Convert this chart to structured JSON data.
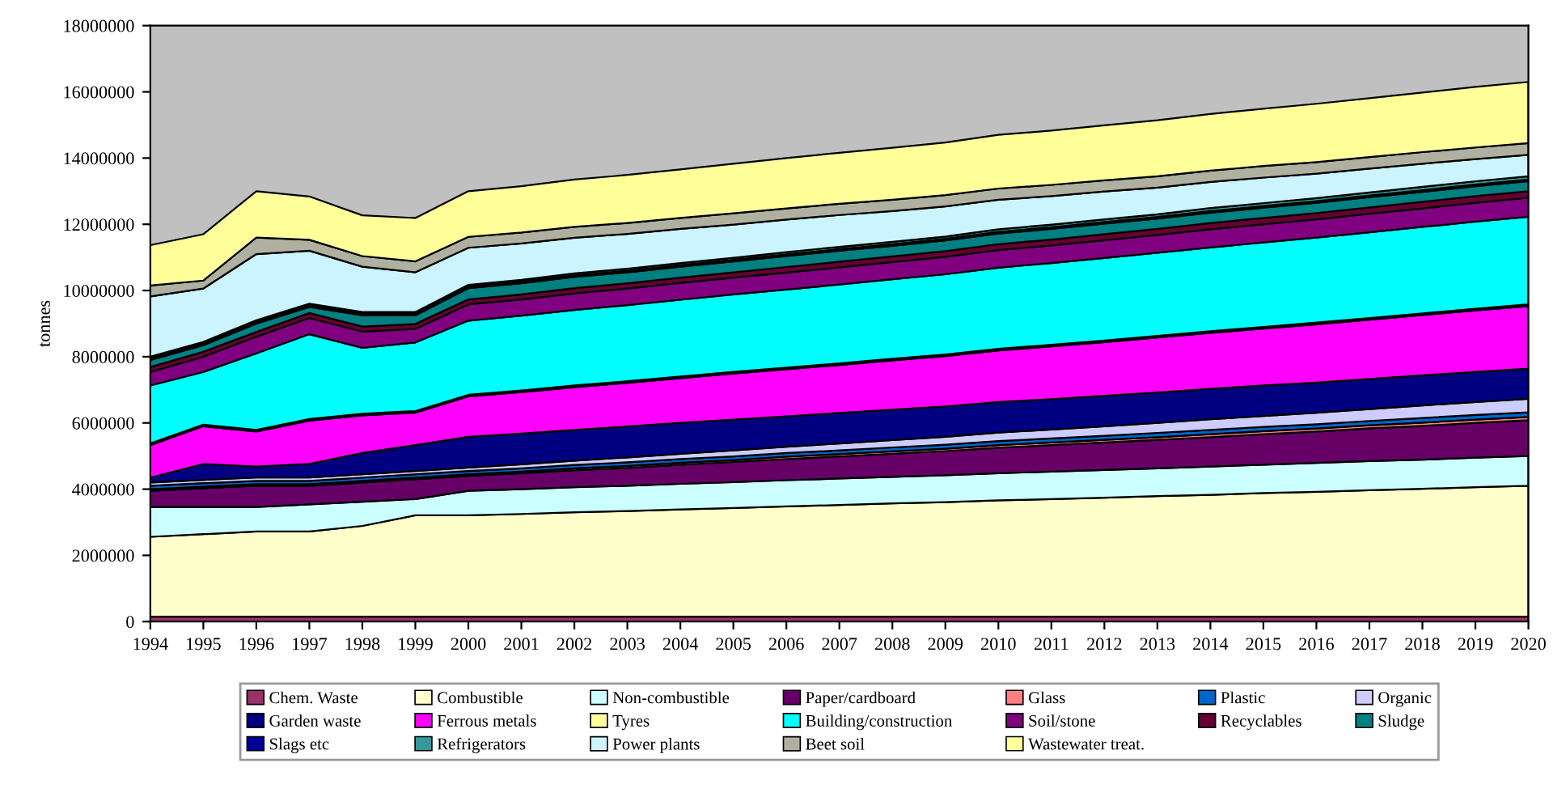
{
  "chart_data": {
    "type": "area",
    "stacked": true,
    "ylabel": "tonnes",
    "categories": [
      "1994",
      "1995",
      "1996",
      "1997",
      "1998",
      "1999",
      "2000",
      "2001",
      "2002",
      "2003",
      "2004",
      "2005",
      "2006",
      "2007",
      "2008",
      "2009",
      "2010",
      "2011",
      "2012",
      "2013",
      "2014",
      "2015",
      "2016",
      "2017",
      "2018",
      "2019",
      "2020"
    ],
    "ylim": [
      0,
      18000000
    ],
    "yticks": [
      0,
      2000000,
      4000000,
      6000000,
      8000000,
      10000000,
      12000000,
      14000000,
      16000000,
      18000000
    ],
    "grid": false,
    "legend": "bottom",
    "series": [
      {
        "name": "Chem. Waste",
        "color": "#993366",
        "values": [
          150000.0,
          150000.0,
          150000.0,
          150000.0,
          150000.0,
          150000.0,
          150000.0,
          150000.0,
          150000.0,
          150000.0,
          150000.0,
          150000.0,
          150000.0,
          150000.0,
          150000.0,
          150000.0,
          150000.0,
          150000.0,
          150000.0,
          150000.0,
          150000.0,
          150000.0,
          150000.0,
          150000.0,
          150000.0,
          150000.0,
          150000.0
        ]
      },
      {
        "name": "Combustible",
        "color": "#ffffcc",
        "values": [
          2410000.0,
          2490000.0,
          2570000.0,
          2570000.0,
          2740000.0,
          3060000.0,
          3060000.0,
          3100000.0,
          3150000.0,
          3190000.0,
          3240000.0,
          3280000.0,
          3330000.0,
          3370000.0,
          3420000.0,
          3460000.0,
          3510000.0,
          3550000.0,
          3590000.0,
          3640000.0,
          3680000.0,
          3730000.0,
          3770000.0,
          3820000.0,
          3860000.0,
          3910000.0,
          3950000.0
        ]
      },
      {
        "name": "Non-combustible",
        "color": "#ccffff",
        "values": [
          900000.0,
          820000.0,
          740000.0,
          820000.0,
          730000.0,
          490000.0,
          740000.0,
          750000.0,
          760000.0,
          760000.0,
          770000.0,
          780000.0,
          790000.0,
          800000.0,
          800000.0,
          810000.0,
          820000.0,
          830000.0,
          840000.0,
          840000.0,
          850000.0,
          860000.0,
          870000.0,
          880000.0,
          880000.0,
          890000.0,
          900000.0
        ]
      },
      {
        "name": "Paper/cardboard",
        "color": "#660066",
        "values": [
          490000.0,
          570000.0,
          640000.0,
          560000.0,
          580000.0,
          600000.0,
          450000.0,
          480000.0,
          510000.0,
          540000.0,
          580000.0,
          610000.0,
          640000.0,
          670000.0,
          700000.0,
          730000.0,
          770000.0,
          800000.0,
          830000.0,
          860000.0,
          890000.0,
          920000.0,
          950000.0,
          990000.0,
          1020000.0,
          1050000.0,
          1080000.0
        ]
      },
      {
        "name": "Glass",
        "color": "#ff8080",
        "values": [
          50000.0,
          50000.0,
          50000.0,
          50000.0,
          50000.0,
          50000.0,
          50000.0,
          50000.0,
          60000.0,
          60000.0,
          60000.0,
          60000.0,
          70000.0,
          70000.0,
          70000.0,
          70000.0,
          80000.0,
          80000.0,
          80000.0,
          80000.0,
          90000.0,
          90000.0,
          90000.0,
          90000.0,
          100000.0,
          100000.0,
          100000.0
        ]
      },
      {
        "name": "Plastic",
        "color": "#0066cc",
        "values": [
          100000.0,
          100000.0,
          100000.0,
          100000.0,
          100000.0,
          100000.0,
          100000.0,
          100000.0,
          100000.0,
          110000.0,
          110000.0,
          110000.0,
          110000.0,
          110000.0,
          120000.0,
          120000.0,
          120000.0,
          120000.0,
          120000.0,
          130000.0,
          130000.0,
          130000.0,
          130000.0,
          130000.0,
          140000.0,
          140000.0,
          140000.0
        ]
      },
      {
        "name": "Organic",
        "color": "#ccccff",
        "values": [
          100000.0,
          100000.0,
          100000.0,
          100000.0,
          100000.0,
          100000.0,
          100000.0,
          120000.0,
          130000.0,
          150000.0,
          160000.0,
          180000.0,
          190000.0,
          210000.0,
          220000.0,
          240000.0,
          260000.0,
          270000.0,
          290000.0,
          300000.0,
          320000.0,
          330000.0,
          350000.0,
          360000.0,
          380000.0,
          390000.0,
          410000.0
        ]
      },
      {
        "name": "Garden waste",
        "color": "#000080",
        "values": [
          150000.0,
          480000.0,
          330000.0,
          410000.0,
          640000.0,
          780000.0,
          930000.0,
          930000.0,
          930000.0,
          930000.0,
          930000.0,
          930000.0,
          920000.0,
          920000.0,
          920000.0,
          920000.0,
          920000.0,
          920000.0,
          920000.0,
          920000.0,
          920000.0,
          920000.0,
          910000.0,
          910000.0,
          910000.0,
          910000.0,
          910000.0
        ]
      },
      {
        "name": "Ferrous metals",
        "color": "#ff00ff",
        "values": [
          980000.0,
          1140000.0,
          1060000.0,
          1310000.0,
          1140000.0,
          980000.0,
          1220000.0,
          1250000.0,
          1290000.0,
          1320000.0,
          1350000.0,
          1390000.0,
          1420000.0,
          1450000.0,
          1490000.0,
          1520000.0,
          1560000.0,
          1590000.0,
          1620000.0,
          1660000.0,
          1690000.0,
          1720000.0,
          1760000.0,
          1790000.0,
          1820000.0,
          1860000.0,
          1890000.0
        ]
      },
      {
        "name": "Tyres",
        "color": "#ffff99",
        "values": [
          50000.0,
          50000.0,
          50000.0,
          50000.0,
          50000.0,
          50000.0,
          50000.0,
          50000.0,
          50000.0,
          50000.0,
          50000.0,
          50000.0,
          50000.0,
          50000.0,
          50000.0,
          50000.0,
          50000.0,
          50000.0,
          50000.0,
          50000.0,
          50000.0,
          50000.0,
          50000.0,
          50000.0,
          50000.0,
          50000.0,
          50000.0
        ]
      },
      {
        "name": "Building/construction",
        "color": "#00ffff",
        "values": [
          1750000.0,
          1590000.0,
          2310000.0,
          2560000.0,
          1990000.0,
          2070000.0,
          2240000.0,
          2260000.0,
          2280000.0,
          2300000.0,
          2320000.0,
          2340000.0,
          2360000.0,
          2380000.0,
          2400000.0,
          2420000.0,
          2450000.0,
          2470000.0,
          2490000.0,
          2510000.0,
          2530000.0,
          2550000.0,
          2570000.0,
          2590000.0,
          2610000.0,
          2630000.0,
          2650000.0
        ]
      },
      {
        "name": "Soil/stone",
        "color": "#800080",
        "values": [
          410000.0,
          460000.0,
          500000.0,
          490000.0,
          490000.0,
          410000.0,
          490000.0,
          490000.0,
          500000.0,
          500000.0,
          510000.0,
          510000.0,
          510000.0,
          520000.0,
          520000.0,
          530000.0,
          530000.0,
          530000.0,
          540000.0,
          540000.0,
          550000.0,
          550000.0,
          550000.0,
          560000.0,
          560000.0,
          570000.0,
          570000.0
        ]
      },
      {
        "name": "Recyclables",
        "color": "#660033",
        "values": [
          150000.0,
          150000.0,
          150000.0,
          150000.0,
          150000.0,
          150000.0,
          150000.0,
          150000.0,
          160000.0,
          160000.0,
          160000.0,
          160000.0,
          170000.0,
          170000.0,
          170000.0,
          170000.0,
          180000.0,
          180000.0,
          180000.0,
          180000.0,
          190000.0,
          190000.0,
          190000.0,
          190000.0,
          200000.0,
          200000.0,
          200000.0
        ]
      },
      {
        "name": "Sludge",
        "color": "#008080",
        "values": [
          210000.0,
          200000.0,
          250000.0,
          180000.0,
          340000.0,
          260000.0,
          340000.0,
          340000.0,
          340000.0,
          330000.0,
          330000.0,
          330000.0,
          330000.0,
          330000.0,
          320000.0,
          320000.0,
          320000.0,
          320000.0,
          320000.0,
          310000.0,
          310000.0,
          310000.0,
          310000.0,
          310000.0,
          300000.0,
          300000.0,
          300000.0
        ]
      },
      {
        "name": "Slags etc",
        "color": "#000099",
        "values": [
          50000.0,
          50000.0,
          50000.0,
          50000.0,
          50000.0,
          50000.0,
          50000.0,
          50000.0,
          50000.0,
          50000.0,
          50000.0,
          50000.0,
          50000.0,
          50000.0,
          50000.0,
          50000.0,
          50000.0,
          50000.0,
          50000.0,
          50000.0,
          50000.0,
          50000.0,
          50000.0,
          50000.0,
          50000.0,
          50000.0,
          50000.0
        ]
      },
      {
        "name": "Refrigerators",
        "color": "#339999",
        "values": [
          50000.0,
          50000.0,
          50000.0,
          50000.0,
          50000.0,
          50000.0,
          50000.0,
          50000.0,
          60000.0,
          60000.0,
          60000.0,
          60000.0,
          70000.0,
          70000.0,
          70000.0,
          70000.0,
          80000.0,
          80000.0,
          80000.0,
          80000.0,
          90000.0,
          90000.0,
          90000.0,
          90000.0,
          100000.0,
          100000.0,
          100000.0
        ]
      },
      {
        "name": "Power plants",
        "color": "#ccf4ff",
        "values": [
          1820000.0,
          1610000.0,
          2000000.0,
          1600000.0,
          1370000.0,
          1200000.0,
          1120000.0,
          1100000.0,
          1070000.0,
          1050000.0,
          1030000.0,
          1000000.0,
          980000.0,
          960000.0,
          930000.0,
          910000.0,
          890000.0,
          860000.0,
          840000.0,
          810000.0,
          790000.0,
          770000.0,
          740000.0,
          720000.0,
          700000.0,
          670000.0,
          650000.0
        ]
      },
      {
        "name": "Beet soil",
        "color": "#b0b0a0",
        "values": [
          330000.0,
          240000.0,
          500000.0,
          330000.0,
          320000.0,
          330000.0,
          330000.0,
          330000.0,
          330000.0,
          330000.0,
          330000.0,
          340000.0,
          340000.0,
          340000.0,
          340000.0,
          340000.0,
          340000.0,
          340000.0,
          340000.0,
          340000.0,
          340000.0,
          350000.0,
          350000.0,
          350000.0,
          350000.0,
          350000.0,
          350000.0
        ]
      },
      {
        "name": "Wastewater treat.",
        "color": "#ffff99",
        "values": [
          1220000.0,
          1400000.0,
          1400000.0,
          1310000.0,
          1230000.0,
          1310000.0,
          1380000.0,
          1400000.0,
          1430000.0,
          1450000.0,
          1470000.0,
          1500000.0,
          1520000.0,
          1540000.0,
          1570000.0,
          1590000.0,
          1620000.0,
          1640000.0,
          1660000.0,
          1690000.0,
          1710000.0,
          1730000.0,
          1760000.0,
          1780000.0,
          1800000.0,
          1830000.0,
          1850000.0
        ]
      }
    ]
  }
}
